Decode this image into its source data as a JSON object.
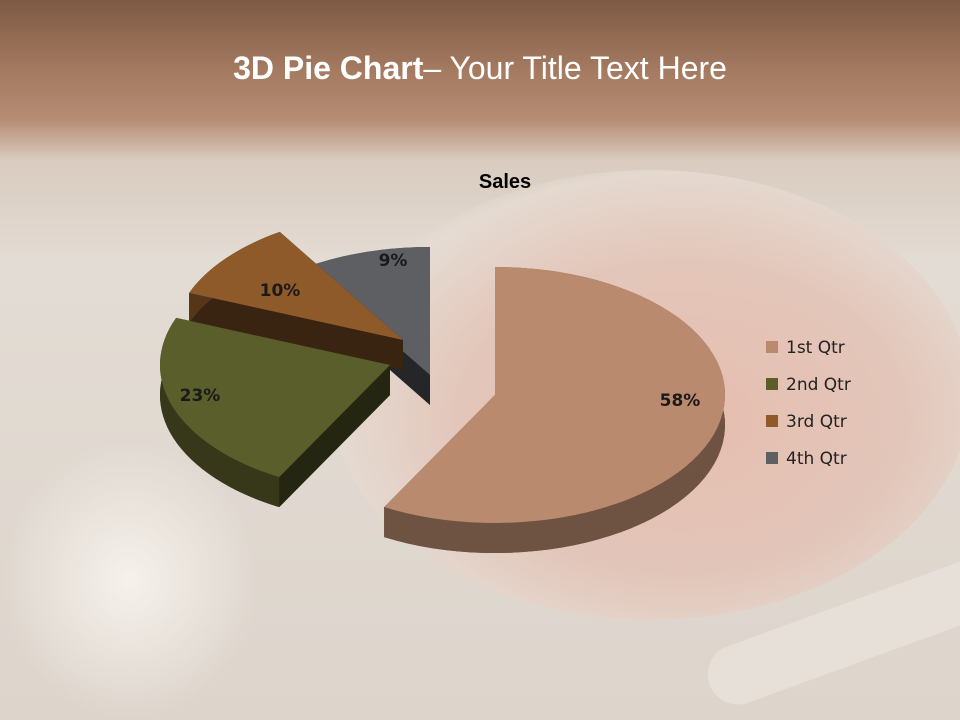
{
  "slide": {
    "title_bold": "3D Pie Chart",
    "title_rest": "– Your Title Text Here"
  },
  "chart_data": {
    "type": "pie",
    "style": "3d-exploded",
    "title": "Sales",
    "categories": [
      "1st Qtr",
      "2nd Qtr",
      "3rd Qtr",
      "4th Qtr"
    ],
    "values": [
      58,
      23,
      10,
      9
    ],
    "data_labels": [
      "58%",
      "23%",
      "10%",
      "9%"
    ],
    "colors": [
      "#b98a6e",
      "#5a5e2a",
      "#8f5a2a",
      "#5d5f63"
    ],
    "legend_position": "right"
  }
}
